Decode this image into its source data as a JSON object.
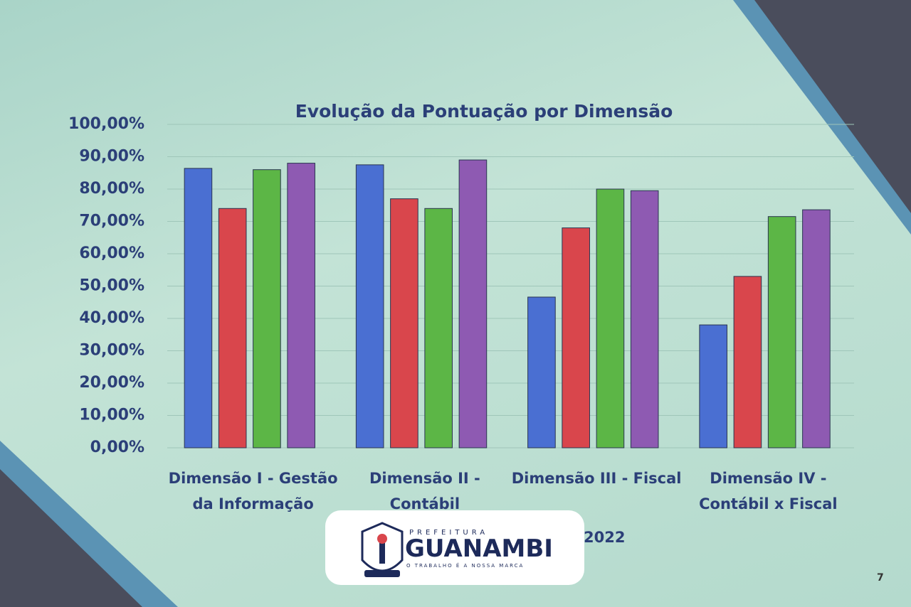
{
  "chart_data": {
    "type": "bar",
    "title": "Evolução da Pontuação por Dimensão",
    "categories": [
      "Dimensão I - Gestão da Informação",
      "Dimensão II - Contábil",
      "Dimensão III - Fiscal",
      "Dimensão IV - Contábil x Fiscal"
    ],
    "series": [
      {
        "color": "#4a6fd2",
        "values": [
          86.4,
          87.5,
          46.6,
          38
        ]
      },
      {
        "color": "#d9464c",
        "values": [
          74,
          77,
          68,
          53
        ]
      },
      {
        "color": "#5cb646",
        "values": [
          86,
          74,
          80,
          71.5
        ]
      },
      {
        "name": "2022",
        "color": "#8e5ab2",
        "values": [
          88,
          89,
          79.5,
          73.6
        ]
      }
    ],
    "ylim": [
      0,
      100
    ],
    "yticks": [
      {
        "value": 0,
        "label": "0,00%"
      },
      {
        "value": 10,
        "label": "10,00%"
      },
      {
        "value": 20,
        "label": "20,00%"
      },
      {
        "value": 30,
        "label": "30,00%"
      },
      {
        "value": 40,
        "label": "40,00%"
      },
      {
        "value": 50,
        "label": "50,00%"
      },
      {
        "value": 60,
        "label": "60,00%"
      },
      {
        "value": 70,
        "label": "70,00%"
      },
      {
        "value": 80,
        "label": "80,00%"
      },
      {
        "value": 90,
        "label": "90,00%"
      },
      {
        "value": 100,
        "label": "100,00%"
      }
    ],
    "grid": true
  },
  "logo": {
    "top_text": "PREFEITURA",
    "name": "GUANAMBI",
    "slogan": "O TRABALHO É A NOSSA MARCA"
  },
  "page_number": "7"
}
